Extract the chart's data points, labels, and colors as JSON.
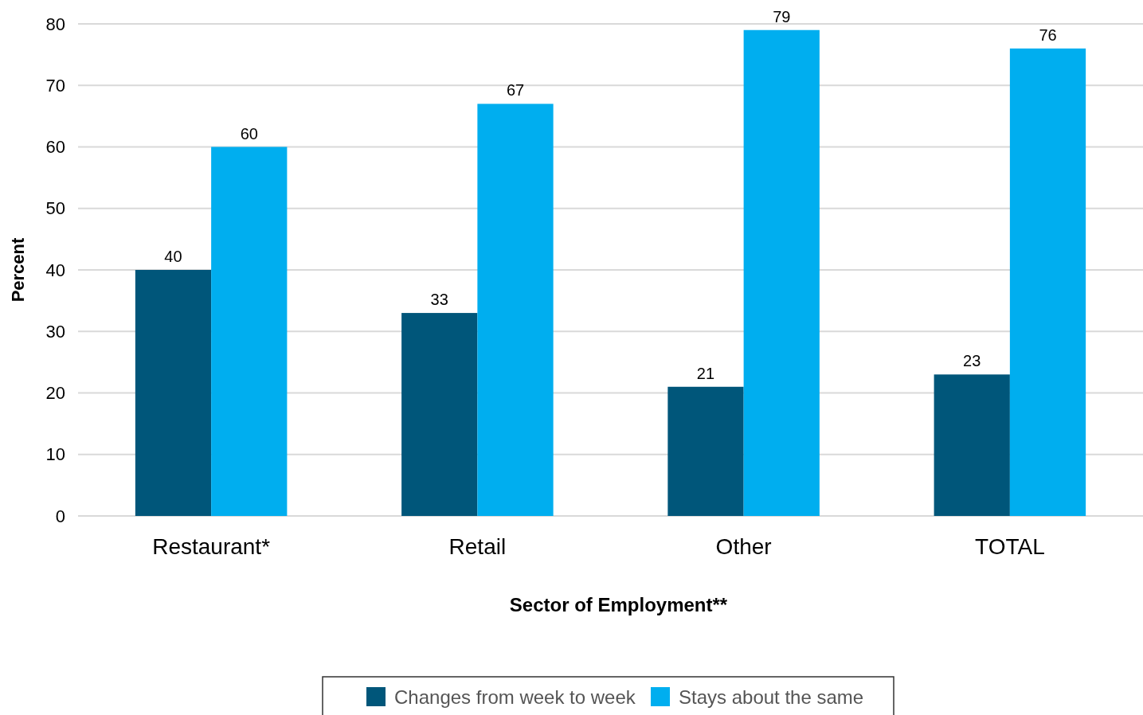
{
  "chart_data": {
    "type": "bar",
    "xlabel": "Sector of Employment**",
    "ylabel": "Percent",
    "categories": [
      "Restaurant*",
      "Retail",
      "Other",
      "TOTAL"
    ],
    "series": [
      {
        "name": "Changes from week to week",
        "color": "#00567a",
        "values": [
          40,
          33,
          21,
          23
        ]
      },
      {
        "name": "Stays about the same",
        "color": "#00aeef",
        "values": [
          60,
          67,
          79,
          76
        ]
      }
    ],
    "ylim": [
      0,
      80
    ],
    "yticks": [
      0,
      10,
      20,
      30,
      40,
      50,
      60,
      70,
      80
    ],
    "grid": "y",
    "data_labels": true,
    "legend": "bottom"
  }
}
